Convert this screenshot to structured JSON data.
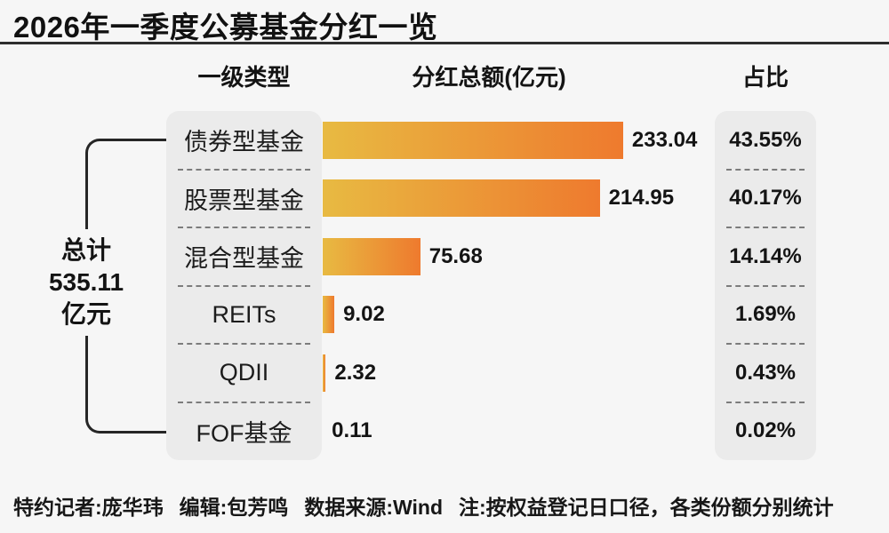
{
  "title": "2026年一季度公募基金分红一览",
  "chart_data": {
    "type": "bar",
    "orientation": "horizontal",
    "title": "2026年一季度公募基金分红一览",
    "columns": [
      "一级类型",
      "分红总额(亿元)",
      "占比"
    ],
    "categories": [
      "债券型基金",
      "股票型基金",
      "混合型基金",
      "REITs",
      "QDII",
      "FOF基金"
    ],
    "values": [
      233.04,
      214.95,
      75.68,
      9.02,
      2.32,
      0.11
    ],
    "shares": [
      "43.55%",
      "40.17%",
      "14.14%",
      "1.69%",
      "0.43%",
      "0.02%"
    ],
    "rows": [
      {
        "label": "债券型基金",
        "value": 233.04,
        "share": "43.55%"
      },
      {
        "label": "股票型基金",
        "value": 214.95,
        "share": "40.17%"
      },
      {
        "label": "混合型基金",
        "value": 75.68,
        "share": "14.14%"
      },
      {
        "label": "REITs",
        "value": 9.02,
        "share": "1.69%"
      },
      {
        "label": "QDII",
        "value": 2.32,
        "share": "0.43%"
      },
      {
        "label": "FOF基金",
        "value": 0.11,
        "share": "0.02%"
      }
    ],
    "total": {
      "label": "总计",
      "value": "535.11",
      "unit": "亿元"
    },
    "bar_colors": {
      "start": "#e8ba42",
      "end": "#ee7a2e"
    },
    "xlim": [
      0,
      260
    ],
    "legend": "none",
    "grid": "off"
  },
  "footer": {
    "credits": [
      "特约记者:庞华玮",
      "编辑:包芳鸣",
      "数据来源:Wind",
      "注:按权益登记日口径，各类份额分别统计"
    ]
  }
}
